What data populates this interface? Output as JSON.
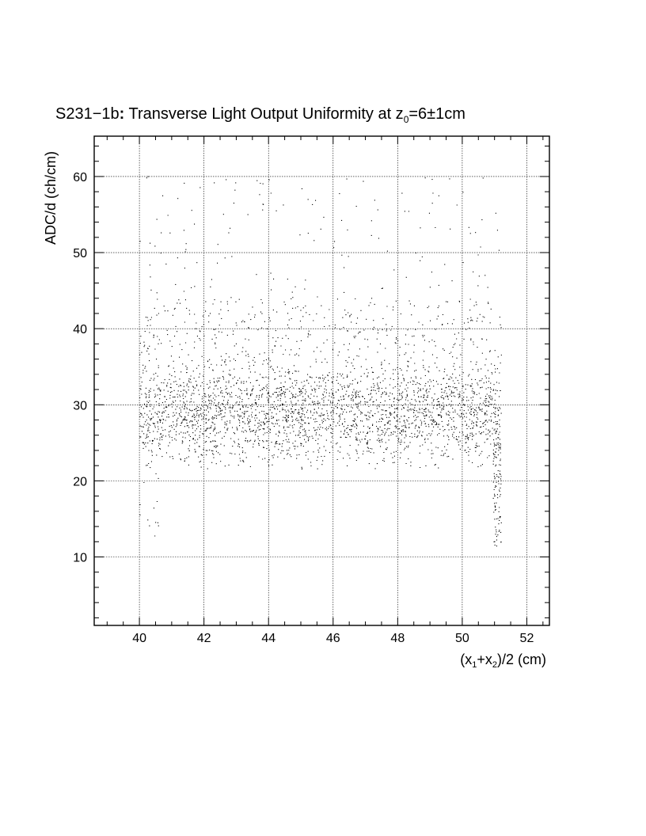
{
  "chart_data": {
    "type": "scatter",
    "title_parts": {
      "a": "S231−1b",
      "b": ":",
      "c": " Transverse Light Output Uniformity at z",
      "d": "0",
      "e": "=6±1cm"
    },
    "xlabel_parts": {
      "a": "(x",
      "b": "1",
      "c": "+x",
      "d": "2",
      "e": ")/2 (cm)"
    },
    "ylabel": "ADC/d (ch/cm)",
    "xlim": [
      38.6,
      52.7
    ],
    "ylim": [
      1.0,
      65.3
    ],
    "x_tick_labels": [
      "40",
      "42",
      "44",
      "46",
      "48",
      "50",
      "52"
    ],
    "y_tick_labels": [
      "10",
      "20",
      "30",
      "40",
      "50",
      "60"
    ],
    "grid": true,
    "point_color": "#000000",
    "distribution": {
      "x_range": [
        40.0,
        51.2
      ],
      "core_y_mean": 28.5,
      "core_y_spread": 3.0,
      "upper_tail_max": 60,
      "edge_drop_x": 51.2,
      "edge_drop_y_range": [
        11,
        25
      ],
      "approx_points": 9000
    }
  }
}
